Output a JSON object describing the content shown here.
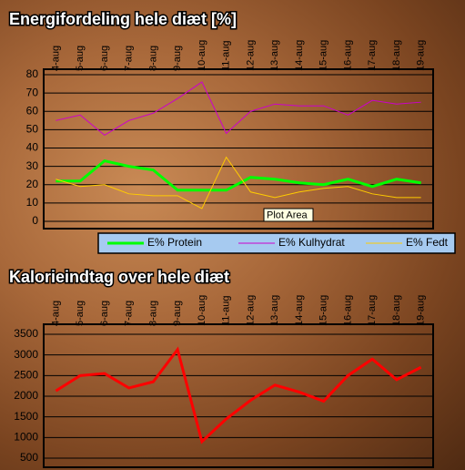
{
  "chart_data": [
    {
      "type": "line",
      "title": "Energifordeling hele diæt [%]",
      "categories": [
        "4-aug",
        "5-aug",
        "6-aug",
        "7-aug",
        "8-aug",
        "9-aug",
        "10-aug",
        "11-aug",
        "12-aug",
        "13-aug",
        "14-aug",
        "15-aug",
        "16-aug",
        "17-aug",
        "18-aug",
        "19-aug"
      ],
      "series": [
        {
          "name": "E% Protein",
          "color": "#00ff00",
          "width": 3,
          "values": [
            22,
            22,
            33,
            30,
            28,
            17,
            17,
            17,
            24,
            23,
            21,
            20,
            23,
            19,
            23,
            21
          ]
        },
        {
          "name": "E% Kulhydrat",
          "color": "#cc00cc",
          "width": 1,
          "values": [
            55,
            58,
            47,
            55,
            59,
            67,
            76,
            48,
            60,
            64,
            63,
            63,
            58,
            66,
            64,
            65
          ]
        },
        {
          "name": "E% Fedt",
          "color": "#ffcc00",
          "width": 1,
          "values": [
            23,
            19,
            20,
            15,
            14,
            14,
            7,
            35,
            16,
            13,
            16,
            18,
            19,
            15,
            13,
            13
          ]
        }
      ],
      "ylim": [
        0,
        80
      ],
      "yticks": [
        0,
        10,
        20,
        30,
        40,
        50,
        60,
        70,
        80
      ],
      "grid": true,
      "annotation": "Plot Area"
    },
    {
      "type": "line",
      "title": "Kalorieindtag over hele diæt",
      "categories": [
        "4-aug",
        "5-aug",
        "6-aug",
        "7-aug",
        "8-aug",
        "9-aug",
        "10-aug",
        "11-aug",
        "12-aug",
        "13-aug",
        "14-aug",
        "15-aug",
        "16-aug",
        "17-aug",
        "18-aug",
        "19-aug"
      ],
      "color": "#ff0000",
      "values": [
        2130,
        2500,
        2550,
        2200,
        2350,
        3130,
        900,
        1450,
        1900,
        2270,
        2100,
        1880,
        2500,
        2900,
        2400,
        2700
      ],
      "ylim": [
        500,
        3500
      ],
      "yticks": [
        500,
        1000,
        1500,
        2000,
        2500,
        3000,
        3500
      ],
      "grid": true
    }
  ]
}
